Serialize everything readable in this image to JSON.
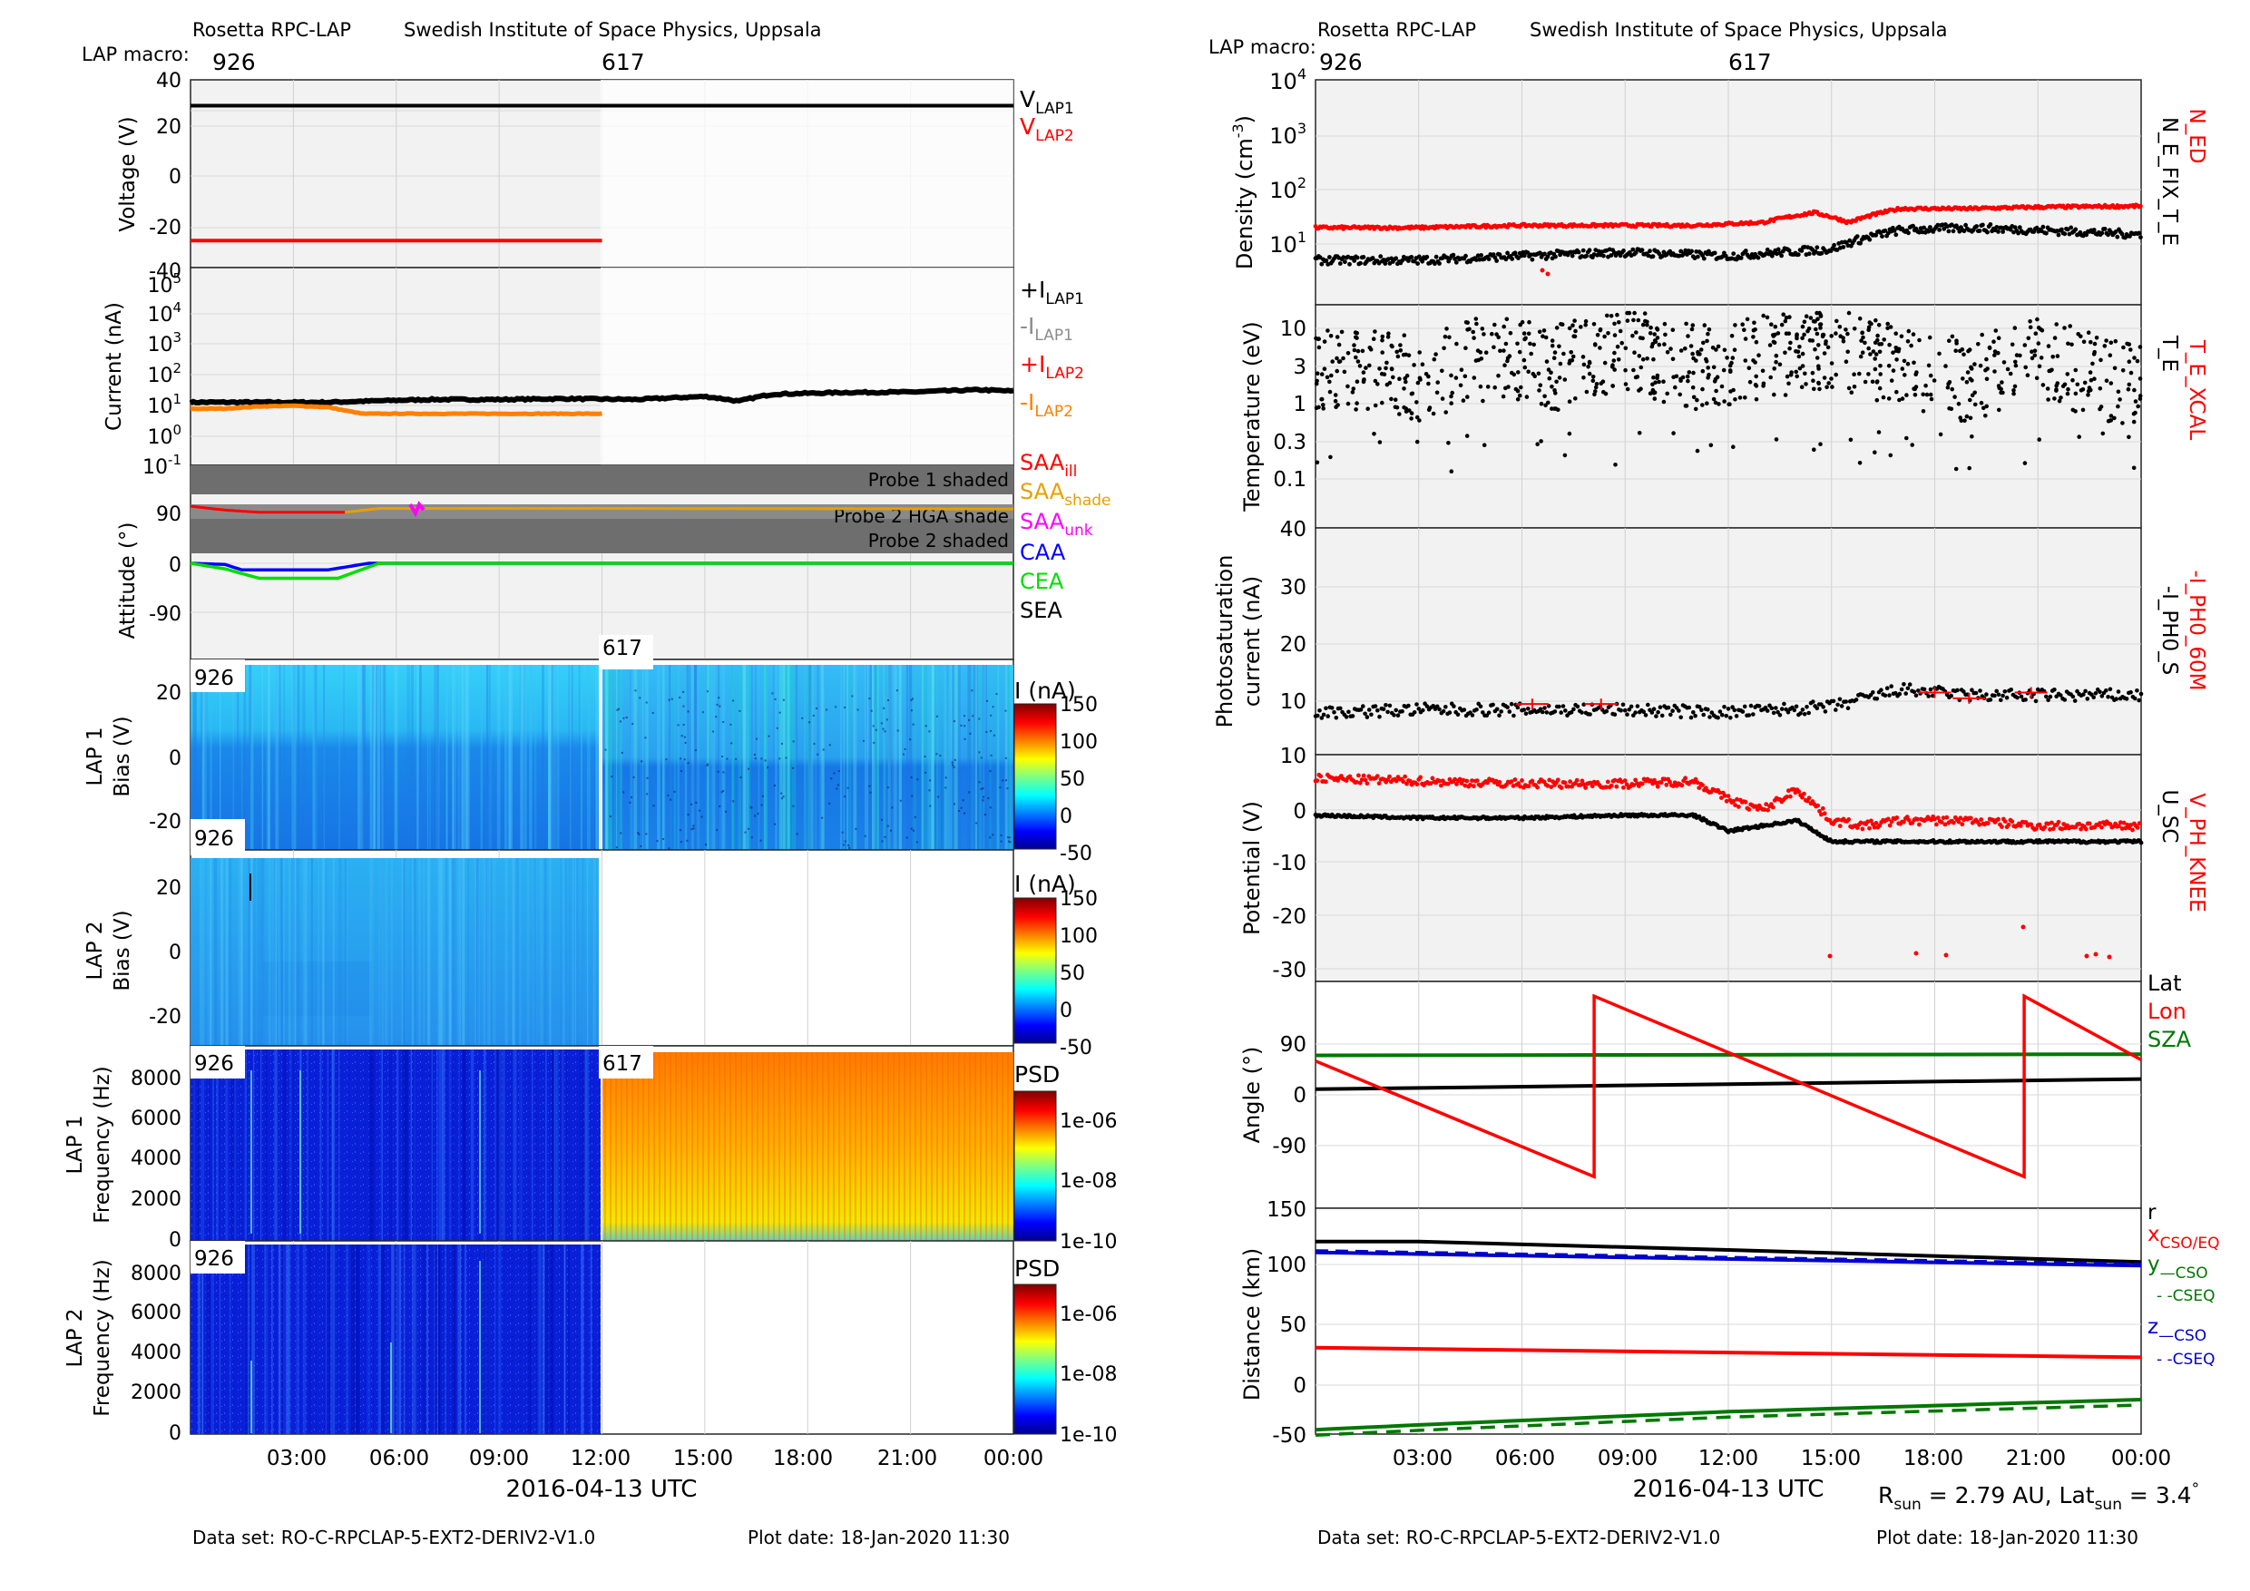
{
  "left": {
    "header": {
      "instrument": "Rosetta RPC-LAP",
      "institute": "Swedish Institute of Space Physics, Uppsala",
      "macro_label": "LAP macro:",
      "macro_a": "926",
      "macro_b": "617"
    },
    "xlabel": "2016-04-13 UTC",
    "xticks": [
      "03:00",
      "06:00",
      "09:00",
      "12:00",
      "15:00",
      "18:00",
      "21:00",
      "00:00"
    ],
    "footer": {
      "dataset": "Data set: RO-C-RPCLAP-5-EXT2-DERIV2-V1.0",
      "plotdate": "Plot date: 18-Jan-2020 11:30"
    },
    "voltage": {
      "ylabel": "Voltage (V)",
      "yticks": [
        "40",
        "20",
        "0",
        "-20",
        "-40"
      ],
      "legend": [
        {
          "main": "V",
          "sub": "LAP1",
          "color": "#000000"
        },
        {
          "main": "V",
          "sub": "LAP2",
          "color": "#ff0000"
        }
      ]
    },
    "current": {
      "ylabel": "Current (nA)",
      "yticks": [
        {
          "b": "10",
          "e": "4"
        },
        {
          "b": "10",
          "e": "3"
        },
        {
          "b": "10",
          "e": "2"
        },
        {
          "b": "10",
          "e": "1"
        },
        {
          "b": "10",
          "e": "0"
        },
        {
          "b": "10",
          "e": "-1"
        }
      ],
      "ytop": {
        "b": "10",
        "e": "5"
      },
      "legend": [
        {
          "main": "+I",
          "sub": "LAP1",
          "color": "#000000"
        },
        {
          "main": "-I",
          "sub": "LAP1",
          "color": "#8c8c8c"
        },
        {
          "main": "+I",
          "sub": "LAP2",
          "color": "#ff0000"
        },
        {
          "main": "-I",
          "sub": "LAP2",
          "color": "#ff8000"
        }
      ]
    },
    "attitude": {
      "ylabel": "Attitude (°)",
      "yticks": [
        "90",
        "0",
        "-90"
      ],
      "shade_labels": [
        "Probe 1 shaded",
        "Probe 2 HGA shade",
        "Probe 2 shaded"
      ],
      "legend": [
        {
          "main": "SAA",
          "sub": "ill",
          "color": "#ff0000"
        },
        {
          "main": "SAA",
          "sub": "shade",
          "color": "#e8a000"
        },
        {
          "main": "SAA",
          "sub": "unk",
          "color": "#ff00ff"
        },
        {
          "main": "CAA",
          "sub": "",
          "color": "#0000ff"
        },
        {
          "main": "CEA",
          "sub": "",
          "color": "#00dd00"
        },
        {
          "main": "SEA",
          "sub": "",
          "color": "#000000"
        }
      ]
    },
    "lap1_bias": {
      "ylabel1": "LAP 1",
      "ylabel2": "Bias (V)",
      "yticks": [
        "20",
        "0",
        "-20"
      ],
      "cbar_title": "I (nA)",
      "cbar_ticks": [
        "150",
        "100",
        "50",
        "0",
        "-50"
      ],
      "tags": [
        "926",
        "617"
      ]
    },
    "lap2_bias": {
      "ylabel1": "LAP 2",
      "ylabel2": "Bias (V)",
      "yticks": [
        "20",
        "0",
        "-20"
      ],
      "cbar_title": "I (nA)",
      "cbar_ticks": [
        "150",
        "100",
        "50",
        "0",
        "-50"
      ],
      "tags": [
        "926"
      ]
    },
    "lap1_freq": {
      "ylabel1": "LAP 1",
      "ylabel2": "Frequency (Hz)",
      "yticks": [
        "8000",
        "6000",
        "4000",
        "2000",
        "0"
      ],
      "cbar_title": "PSD",
      "cbar_ticks": [
        "1e-06",
        "1e-08",
        "1e-10"
      ],
      "tags": [
        "926",
        "617"
      ]
    },
    "lap2_freq": {
      "ylabel1": "LAP 2",
      "ylabel2": "Frequency (Hz)",
      "yticks": [
        "8000",
        "6000",
        "4000",
        "2000",
        "0"
      ],
      "cbar_title": "PSD",
      "cbar_ticks": [
        "1e-06",
        "1e-08",
        "1e-10"
      ],
      "tags": [
        "926"
      ]
    }
  },
  "right": {
    "header": {
      "instrument": "Rosetta RPC-LAP",
      "institute": "Swedish Institute of Space Physics, Uppsala",
      "macro_label": "LAP macro:",
      "macro_a": "926",
      "macro_b": "617"
    },
    "xlabel": "2016-04-13 UTC",
    "xticks": [
      "03:00",
      "06:00",
      "09:00",
      "12:00",
      "15:00",
      "18:00",
      "21:00",
      "00:00"
    ],
    "rsun_line": {
      "r": "R",
      "rsub": "sun",
      "rval": " = 2.79 AU, Lat",
      "latsub": "sun",
      "latval": " = 3.4",
      "deg": "°"
    },
    "footer": {
      "dataset": "Data set: RO-C-RPCLAP-5-EXT2-DERIV2-V1.0",
      "plotdate": "Plot date: 18-Jan-2020 11:30"
    },
    "density": {
      "ylabel": "Density (cm",
      "ylabel_sup": "-3",
      "ylabel_end": ")",
      "yticks": [
        {
          "b": "10",
          "e": "4"
        },
        {
          "b": "10",
          "e": "3"
        },
        {
          "b": "10",
          "e": "2"
        },
        {
          "b": "10",
          "e": "1"
        }
      ],
      "side1": "N_ED",
      "side2": "N_E_FIX_T_E"
    },
    "temperature": {
      "ylabel": "Temperature (eV)",
      "yticks": [
        "10",
        "3",
        "1",
        "0.3",
        "0.1"
      ],
      "side1": "T_E_XCAL",
      "side2": "T_E"
    },
    "photo": {
      "ylabel1": "Photosaturation",
      "ylabel2": "current (nA)",
      "yticks": [
        "40",
        "30",
        "20",
        "10"
      ],
      "side1": "-I_PH0_60M",
      "side2": "-I_PH0_S"
    },
    "potential": {
      "ylabel": "Potential (V)",
      "yticks": [
        "10",
        "0",
        "-10",
        "-20",
        "-30"
      ],
      "side1": "V_PH_KNEE",
      "side2": "U_SC"
    },
    "angle": {
      "ylabel": "Angle (°)",
      "yticks": [
        "90",
        "0",
        "-90",
        "150"
      ],
      "legend": [
        {
          "label": "Lat",
          "color": "#000000"
        },
        {
          "label": "Lon",
          "color": "#ff0000"
        },
        {
          "label": "SZA",
          "color": "#007700"
        }
      ]
    },
    "distance": {
      "ylabel": "Distance (km)",
      "yticks": [
        "100",
        "50",
        "0",
        "-50"
      ],
      "legend": [
        {
          "main": "r",
          "sub": "",
          "color": "#000000"
        },
        {
          "main": "x",
          "sub": "CSO/EQ",
          "color": "#ff0000"
        },
        {
          "main": "y",
          "sub": "—CSO",
          "color": "#007700"
        },
        {
          "main": "",
          "sub": "- -CSEQ",
          "color": "#007700"
        },
        {
          "main": "z",
          "sub": "—CSO",
          "color": "#0000cc"
        },
        {
          "main": "",
          "sub": "- -CSEQ",
          "color": "#0000cc"
        }
      ]
    }
  },
  "chart_data": [
    {
      "type": "line",
      "title": "Voltage",
      "ylabel": "Voltage (V)",
      "ylim": [
        -40,
        40
      ],
      "x_hours": [
        0,
        12
      ],
      "series": [
        {
          "name": "V_LAP1",
          "color": "#000000",
          "x": [
            0,
            24
          ],
          "values": [
            29,
            29
          ]
        },
        {
          "name": "V_LAP2",
          "color": "#ff0000",
          "x": [
            0,
            12
          ],
          "values": [
            -28.5,
            -28.5
          ]
        }
      ]
    },
    {
      "type": "line",
      "title": "Current",
      "ylabel": "Current (nA)",
      "yscale": "log",
      "ylim": [
        0.1,
        100000
      ],
      "series": [
        {
          "name": "+I_LAP1",
          "color": "#000000",
          "x": [
            0,
            2,
            4,
            5,
            7,
            9,
            11,
            13,
            14,
            15,
            16,
            17,
            19,
            21,
            23,
            24
          ],
          "values": [
            13,
            13,
            13,
            14,
            16,
            16,
            17,
            16,
            18,
            20,
            14,
            24,
            27,
            28,
            33,
            30
          ]
        },
        {
          "name": "-I_LAP2",
          "color": "#ff8000",
          "x": [
            0,
            1,
            2,
            3,
            4,
            4.5,
            5,
            6,
            8,
            10,
            12
          ],
          "values": [
            8,
            8,
            9.5,
            10,
            9,
            7,
            5.5,
            5.5,
            5.5,
            5.5,
            5.5
          ]
        }
      ]
    },
    {
      "type": "line",
      "title": "Attitude",
      "ylabel": "Attitude (°)",
      "series": [
        {
          "name": "SAA_ill",
          "color": "#ff0000",
          "x": [
            0,
            1,
            2,
            4.5
          ],
          "values": [
            103,
            96,
            92,
            92
          ]
        },
        {
          "name": "SAA_shade",
          "color": "#e8a000",
          "x": [
            4.5,
            5.5,
            7,
            12,
            24
          ],
          "values": [
            92,
            99,
            99,
            99,
            98
          ]
        },
        {
          "name": "CAA",
          "color": "#0000ff",
          "x": [
            0,
            1,
            1.5,
            4,
            5.2,
            5.5,
            24
          ],
          "values": [
            0,
            -2,
            -12,
            -12,
            0,
            0,
            0
          ]
        },
        {
          "name": "CEA",
          "color": "#00dd00",
          "x": [
            0,
            1,
            2,
            4.3,
            5.5,
            6,
            24
          ],
          "values": [
            0,
            -10,
            -27,
            -27,
            0,
            0,
            0
          ]
        }
      ]
    },
    {
      "type": "line",
      "title": "Density",
      "ylabel": "Density (cm-3)",
      "yscale": "log",
      "ylim": [
        2,
        10000
      ],
      "series": [
        {
          "name": "N_ED",
          "color": "#ff0000",
          "x": [
            0,
            3,
            6,
            9,
            11,
            13,
            14.5,
            15.5,
            17,
            19,
            21,
            24
          ],
          "values": [
            20,
            20,
            22,
            22,
            22,
            25,
            38,
            25,
            45,
            45,
            48,
            50
          ]
        },
        {
          "name": "N_E_FIX_T_E",
          "color": "#000000",
          "x": [
            0,
            3,
            6,
            9,
            12,
            15,
            17,
            19,
            21,
            24
          ],
          "values": [
            5,
            5,
            6,
            7,
            6,
            8,
            18,
            20,
            18,
            15
          ]
        }
      ]
    },
    {
      "type": "scatter",
      "title": "Temperature",
      "ylabel": "Temperature (eV)",
      "yscale": "log",
      "ylim": [
        0.03,
        20
      ],
      "series": [
        {
          "name": "T_E",
          "color": "#000000",
          "x": [
            1,
            3,
            5,
            7,
            9,
            11,
            13,
            15,
            17,
            19,
            21,
            23
          ],
          "values": [
            3,
            2,
            4,
            3,
            5,
            3,
            4,
            6,
            3,
            2,
            4,
            2
          ]
        }
      ]
    },
    {
      "type": "scatter",
      "title": "Photosaturation current",
      "ylabel": "Photosaturation current (nA)",
      "ylim": [
        0,
        40
      ],
      "series": [
        {
          "name": "-I_PH0_S",
          "color": "#000000",
          "x": [
            0,
            3,
            6,
            9,
            12,
            15,
            17,
            19,
            21,
            24
          ],
          "values": [
            8,
            8.5,
            8.5,
            8.5,
            8,
            9,
            12,
            11,
            11,
            11
          ]
        },
        {
          "name": "-I_PH0_60M",
          "color": "#ff0000",
          "x": [
            6.3,
            8.3,
            18,
            19,
            20.8
          ],
          "values": [
            9.5,
            9.5,
            11.5,
            10.5,
            11.5
          ]
        }
      ]
    },
    {
      "type": "line",
      "title": "Potential",
      "ylabel": "Potential (V)",
      "ylim": [
        -32,
        10
      ],
      "series": [
        {
          "name": "V_PH_KNEE",
          "color": "#ff0000",
          "x": [
            0,
            3,
            6,
            9,
            11,
            12,
            13,
            14,
            15,
            16,
            17,
            19,
            21,
            24
          ],
          "values": [
            6,
            5.5,
            5,
            5,
            5.5,
            2,
            0,
            4,
            -2,
            -3,
            -2,
            -2,
            -3,
            -3
          ]
        },
        {
          "name": "U_SC",
          "color": "#000000",
          "x": [
            0,
            3,
            6,
            9,
            11,
            12,
            13,
            14,
            15,
            16,
            17,
            19,
            21,
            24
          ],
          "values": [
            -1,
            -1.5,
            -1.5,
            -1,
            -1,
            -4,
            -3,
            -2,
            -6,
            -6,
            -6,
            -6,
            -6,
            -6
          ]
        }
      ]
    },
    {
      "type": "line",
      "title": "Angle",
      "ylabel": "Angle (°)",
      "ylim": [
        -150,
        180
      ],
      "series": [
        {
          "name": "Lat",
          "color": "#000000",
          "x": [
            0,
            24
          ],
          "values": [
            10,
            28
          ]
        },
        {
          "name": "Lon",
          "color": "#ff0000",
          "x": [
            0,
            8.1,
            8.1,
            20.6,
            20.6,
            24
          ],
          "values": [
            60,
            -145,
            175,
            -145,
            175,
            62
          ]
        },
        {
          "name": "SZA",
          "color": "#007700",
          "x": [
            0,
            24
          ],
          "values": [
            70,
            72
          ]
        }
      ]
    },
    {
      "type": "line",
      "title": "Distance",
      "ylabel": "Distance (km)",
      "ylim": [
        -50,
        130
      ],
      "series": [
        {
          "name": "r",
          "color": "#000000",
          "x": [
            0,
            3,
            12,
            24
          ],
          "values": [
            119,
            119,
            112,
            102
          ]
        },
        {
          "name": "x_CSO/EQ",
          "color": "#ff0000",
          "x": [
            0,
            24
          ],
          "values": [
            31,
            23
          ]
        },
        {
          "name": "y_CSO",
          "color": "#007700",
          "x": [
            0,
            3,
            12,
            24
          ],
          "values": [
            -37,
            -33,
            -22,
            -12
          ]
        },
        {
          "name": "z_CSO",
          "color": "#0000cc",
          "x": [
            0,
            24
          ],
          "values": [
            110,
            99
          ]
        }
      ]
    }
  ]
}
